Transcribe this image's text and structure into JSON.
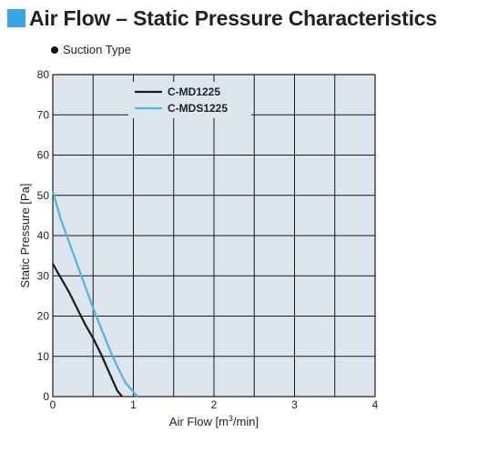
{
  "chart_data": {
    "type": "line",
    "title": "Air Flow – Static Pressure Characteristics",
    "subtitle": "Suction Type",
    "xlabel_pre": "Air Flow [m",
    "xlabel_sup": "3",
    "xlabel_post": "/min]",
    "ylabel": "Static Pressure [Pa]",
    "xlim": [
      0,
      4
    ],
    "ylim": [
      0,
      80
    ],
    "x_ticks": [
      "0",
      "1",
      "2",
      "3",
      "4"
    ],
    "y_ticks": [
      "0",
      "10",
      "20",
      "30",
      "40",
      "50",
      "60",
      "70",
      "80"
    ],
    "grid": true,
    "legend_position": "top-center",
    "series": [
      {
        "name": "C-MD1225",
        "color": "#1a1a1a",
        "points": [
          [
            0,
            33
          ],
          [
            0.1,
            29.5
          ],
          [
            0.2,
            26
          ],
          [
            0.3,
            22
          ],
          [
            0.4,
            18
          ],
          [
            0.5,
            14.5
          ],
          [
            0.6,
            10.5
          ],
          [
            0.7,
            6
          ],
          [
            0.8,
            1.5
          ],
          [
            0.86,
            0
          ]
        ]
      },
      {
        "name": "C-MDS1225",
        "color": "#4fb3e6",
        "points": [
          [
            0,
            51
          ],
          [
            0.1,
            44
          ],
          [
            0.2,
            38.5
          ],
          [
            0.3,
            33
          ],
          [
            0.4,
            27.5
          ],
          [
            0.5,
            22
          ],
          [
            0.6,
            17
          ],
          [
            0.7,
            12
          ],
          [
            0.8,
            7.5
          ],
          [
            0.9,
            3.5
          ],
          [
            1.05,
            0
          ]
        ]
      }
    ]
  }
}
